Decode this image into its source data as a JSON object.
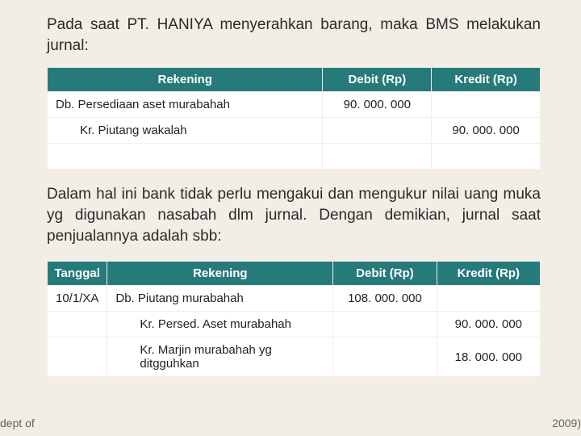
{
  "intro": "Pada saat PT. HANIYA menyerahkan barang, maka BMS melakukan jurnal:",
  "table1": {
    "headers": {
      "rekening": "Rekening",
      "debit": "Debit (Rp)",
      "kredit": "Kredit (Rp)"
    },
    "rows": [
      {
        "rek": "Db. Persediaan aset murabahah",
        "deb": "90. 000. 000",
        "kre": "",
        "indent": false
      },
      {
        "rek": "Kr. Piutang wakalah",
        "deb": "",
        "kre": "90. 000. 000",
        "indent": true
      },
      {
        "rek": "",
        "deb": "",
        "kre": "",
        "indent": false
      }
    ]
  },
  "mid": "Dalam hal ini bank tidak perlu mengakui dan mengukur nilai uang muka yg digunakan nasabah dlm jurnal. Dengan demikian, jurnal saat penjualannya adalah sbb:",
  "table2": {
    "headers": {
      "tanggal": "Tanggal",
      "rekening": "Rekening",
      "debit": "Debit (Rp)",
      "kredit": "Kredit (Rp)"
    },
    "rows": [
      {
        "tgl": "10/1/XA",
        "rek": "Db. Piutang murabahah",
        "deb": "108. 000. 000",
        "kre": "",
        "indent": false
      },
      {
        "tgl": "",
        "rek": "Kr. Persed. Aset murabahah",
        "deb": "",
        "kre": "90. 000. 000",
        "indent": true
      },
      {
        "tgl": "",
        "rek": "Kr. Marjin murabahah yg ditgguhkan",
        "deb": "",
        "kre": "18. 000. 000",
        "indent": true
      }
    ]
  },
  "footer": {
    "left": "dept of",
    "right": "2009)"
  },
  "colors": {
    "page_bg": "#f2eee6",
    "header_bg": "#267a7a",
    "header_text": "#ffffff",
    "cell_bg": "#ffffff",
    "body_text": "#2a2a2a",
    "footer_text": "#686055"
  }
}
